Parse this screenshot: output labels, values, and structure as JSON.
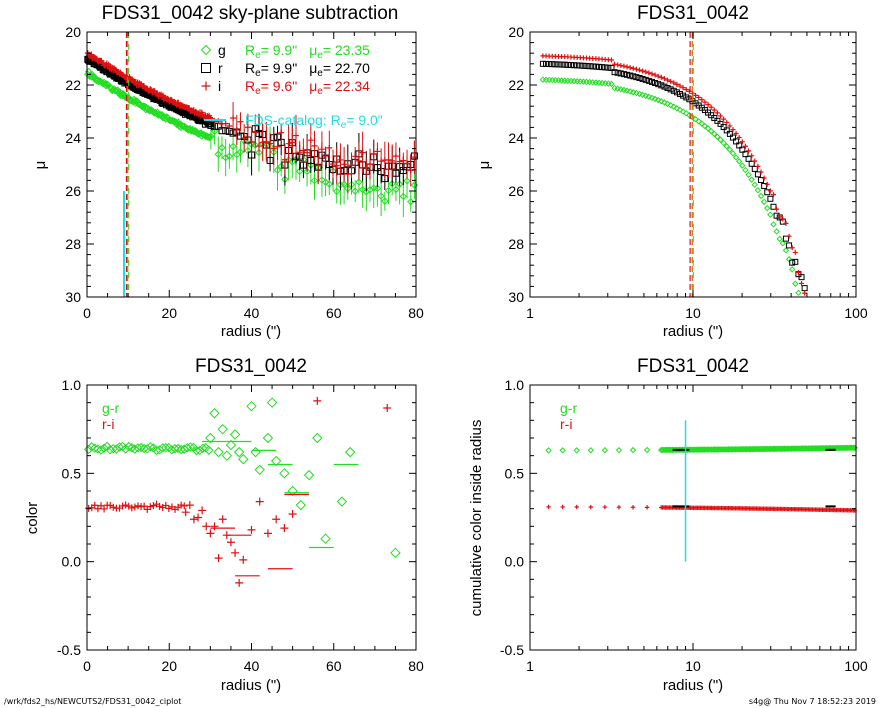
{
  "footer": {
    "left": "/wrk/fds2_hs/NEWCUTS2/FDS31_0042_ciplot",
    "right": "s4g@  Thu Nov  7 18:52:23 2019"
  },
  "colors": {
    "g": "#22dd22",
    "r": "#000000",
    "i": "#dd1111",
    "catalog": "#22dddd",
    "reline": "#dd6600"
  },
  "chart_data": [
    {
      "id": "p1",
      "type": "scatter",
      "title": "FDS31_0042 sky-plane subtraction",
      "xlabel": "radius (\")",
      "ylabel": "μ",
      "xlim": [
        0,
        80
      ],
      "ylim": [
        30,
        20
      ],
      "xticks": [
        "0",
        "20",
        "40",
        "60",
        "80"
      ],
      "yticks": [
        "20",
        "22",
        "24",
        "26",
        "28",
        "30"
      ],
      "legend": [
        {
          "band": "g",
          "re": "9.9\"",
          "mu": "23.35"
        },
        {
          "band": "r",
          "re": "9.9\"",
          "mu": "22.70"
        },
        {
          "band": "i",
          "re": "9.6\"",
          "mu": "22.34"
        }
      ],
      "legend_labels": {
        "re": "R",
        "re_sub": "e",
        "re_eq": "=",
        "mu": "μ",
        "mu_sub": "e",
        "mu_eq": "="
      },
      "catalog": {
        "label": "FDS-catalog: R",
        "sub": "e",
        "eq": "=",
        "value": "9.0\"",
        "x": 9.0,
        "ymin": 26.0,
        "ymax": 30
      },
      "re_lines": [
        9.6,
        9.9
      ],
      "series": [
        {
          "name": "g",
          "mu0": 21.55,
          "slope": 0.1,
          "noise_from": 30
        },
        {
          "name": "r",
          "mu0": 21.0,
          "slope": 0.1,
          "noise_from": 40
        },
        {
          "name": "i",
          "mu0": 20.8,
          "slope": 0.1,
          "noise_from": 35
        }
      ]
    },
    {
      "id": "p2",
      "type": "scatter",
      "title": "FDS31_0042",
      "xlabel": "radius (\")",
      "ylabel": "μ",
      "xscale": "log",
      "xlim": [
        1,
        100
      ],
      "ylim": [
        30,
        20
      ],
      "xticks": [
        "1",
        "10",
        "100"
      ],
      "yticks": [
        "20",
        "22",
        "24",
        "26",
        "28",
        "30"
      ],
      "re_lines": [
        9.6,
        9.9
      ],
      "series": [
        {
          "name": "g",
          "mu_at_1": 21.8
        },
        {
          "name": "r",
          "mu_at_1": 21.2
        },
        {
          "name": "i",
          "mu_at_1": 20.9
        }
      ]
    },
    {
      "id": "p3",
      "type": "scatter",
      "title": "FDS31_0042",
      "xlabel": "radius (\")",
      "ylabel": "color",
      "xlim": [
        0,
        80
      ],
      "ylim": [
        -0.5,
        1.0
      ],
      "xticks": [
        "0",
        "20",
        "40",
        "60",
        "80"
      ],
      "yticks": [
        "-0.5",
        "0.0",
        "0.5",
        "1.0"
      ],
      "legend": [
        "g-r",
        "r-i"
      ],
      "series": [
        {
          "name": "g-r",
          "inner_value": 0.64,
          "outer_points": [
            [
              30,
              0.7
            ],
            [
              31,
              0.84
            ],
            [
              32,
              0.62
            ],
            [
              33,
              0.75
            ],
            [
              34,
              0.6
            ],
            [
              35,
              0.66
            ],
            [
              36,
              0.72
            ],
            [
              37,
              0.62
            ],
            [
              38,
              0.58
            ],
            [
              40,
              0.88
            ],
            [
              41,
              0.62
            ],
            [
              42,
              0.52
            ],
            [
              44,
              0.7
            ],
            [
              45,
              0.9
            ],
            [
              46,
              0.57
            ],
            [
              48,
              0.5
            ],
            [
              50,
              0.4
            ],
            [
              52,
              0.32
            ],
            [
              54,
              0.49
            ],
            [
              56,
              0.7
            ],
            [
              58,
              0.13
            ],
            [
              62,
              0.34
            ],
            [
              64,
              0.62
            ],
            [
              75,
              0.05
            ]
          ],
          "bins": [
            [
              28,
              34,
              0.68
            ],
            [
              34,
              40,
              0.68
            ],
            [
              40,
              46,
              0.63
            ],
            [
              44,
              50,
              0.55
            ],
            [
              48,
              54,
              0.39
            ],
            [
              54,
              60,
              0.08
            ],
            [
              60,
              66,
              0.55
            ]
          ]
        },
        {
          "name": "r-i",
          "inner_value": 0.31,
          "outer_points": [
            [
              24,
              0.28
            ],
            [
              25,
              0.32
            ],
            [
              26,
              0.24
            ],
            [
              27,
              0.25
            ],
            [
              28,
              0.29
            ],
            [
              29,
              0.2
            ],
            [
              30,
              0.16
            ],
            [
              31,
              0.2
            ],
            [
              32,
              0.02
            ],
            [
              33,
              0.24
            ],
            [
              34,
              0.15
            ],
            [
              35,
              0.11
            ],
            [
              36,
              0.05
            ],
            [
              37,
              -0.12
            ],
            [
              38,
              0.01
            ],
            [
              40,
              0.18
            ],
            [
              42,
              0.34
            ],
            [
              44,
              0.16
            ],
            [
              46,
              0.24
            ],
            [
              48,
              0.19
            ],
            [
              50,
              0.27
            ],
            [
              56,
              0.91
            ],
            [
              73,
              0.87
            ]
          ],
          "bins": [
            [
              30,
              36,
              0.19
            ],
            [
              34,
              40,
              0.15
            ],
            [
              36,
              42,
              -0.08
            ],
            [
              44,
              50,
              -0.04
            ],
            [
              48,
              54,
              0.38
            ]
          ]
        }
      ]
    },
    {
      "id": "p4",
      "type": "scatter",
      "title": "FDS31_0042",
      "xlabel": "radius (\")",
      "ylabel": "cumulative color inside radius",
      "xscale": "log",
      "xlim": [
        1,
        100
      ],
      "ylim": [
        -0.5,
        1.0
      ],
      "xticks": [
        "1",
        "10",
        "100"
      ],
      "yticks": [
        "-0.5",
        "0.0",
        "0.5",
        "1.0"
      ],
      "legend": [
        "g-r",
        "r-i"
      ],
      "catalog": {
        "x": 9.0,
        "ymin": 0.0,
        "ymax": 0.8
      },
      "series": [
        {
          "name": "g-r",
          "value": 0.63,
          "end": 0.645
        },
        {
          "name": "r-i",
          "value": 0.31,
          "end": 0.29
        }
      ]
    }
  ]
}
